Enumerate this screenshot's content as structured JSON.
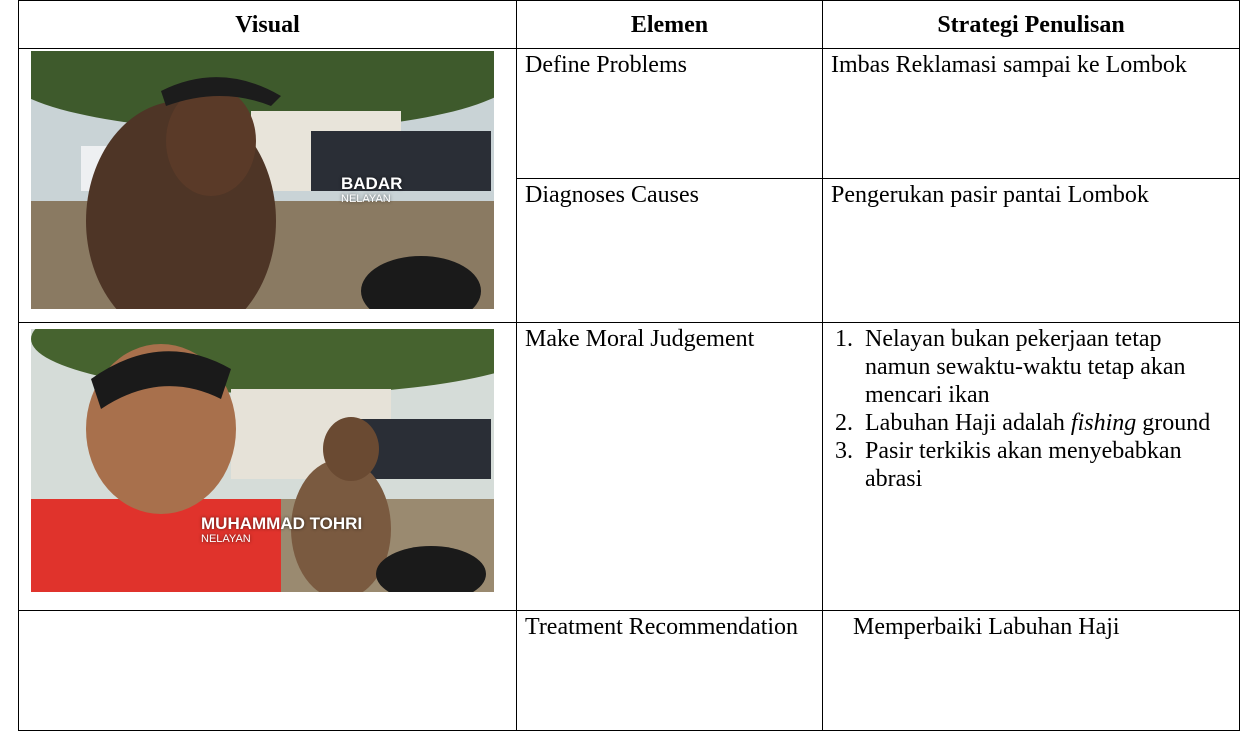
{
  "table": {
    "header": [
      "Visual",
      "Elemen",
      "Strategi Penulisan"
    ],
    "images": [
      {
        "caption_name": "BADAR",
        "caption_role": "NELAYAN"
      },
      {
        "caption_name": "MUHAMMAD TOHRI",
        "caption_role": "NELAYAN"
      }
    ],
    "rows": [
      {
        "element": "Define Problems",
        "strategy": "Imbas Reklamasi sampai ke Lombok"
      },
      {
        "element": "Diagnoses Causes",
        "strategy": "Pengerukan pasir pantai Lombok"
      },
      {
        "element": "Make Moral Judgement",
        "strategy_list": [
          {
            "number": "1.",
            "text": "Nelayan bukan pekerjaan tetap namun sewaktu-waktu tetap akan mencari ikan"
          },
          {
            "number": "2.",
            "text_before": "Labuhan Haji adalah",
            "text_italic": "fishing",
            "text_after": "ground"
          },
          {
            "number": "3.",
            "text": "Pasir terkikis akan menyebabkan abrasi"
          }
        ]
      },
      {
        "element": "Treatment Recommendation",
        "strategy": "Memperbaiki Labuhan Haji"
      }
    ]
  }
}
